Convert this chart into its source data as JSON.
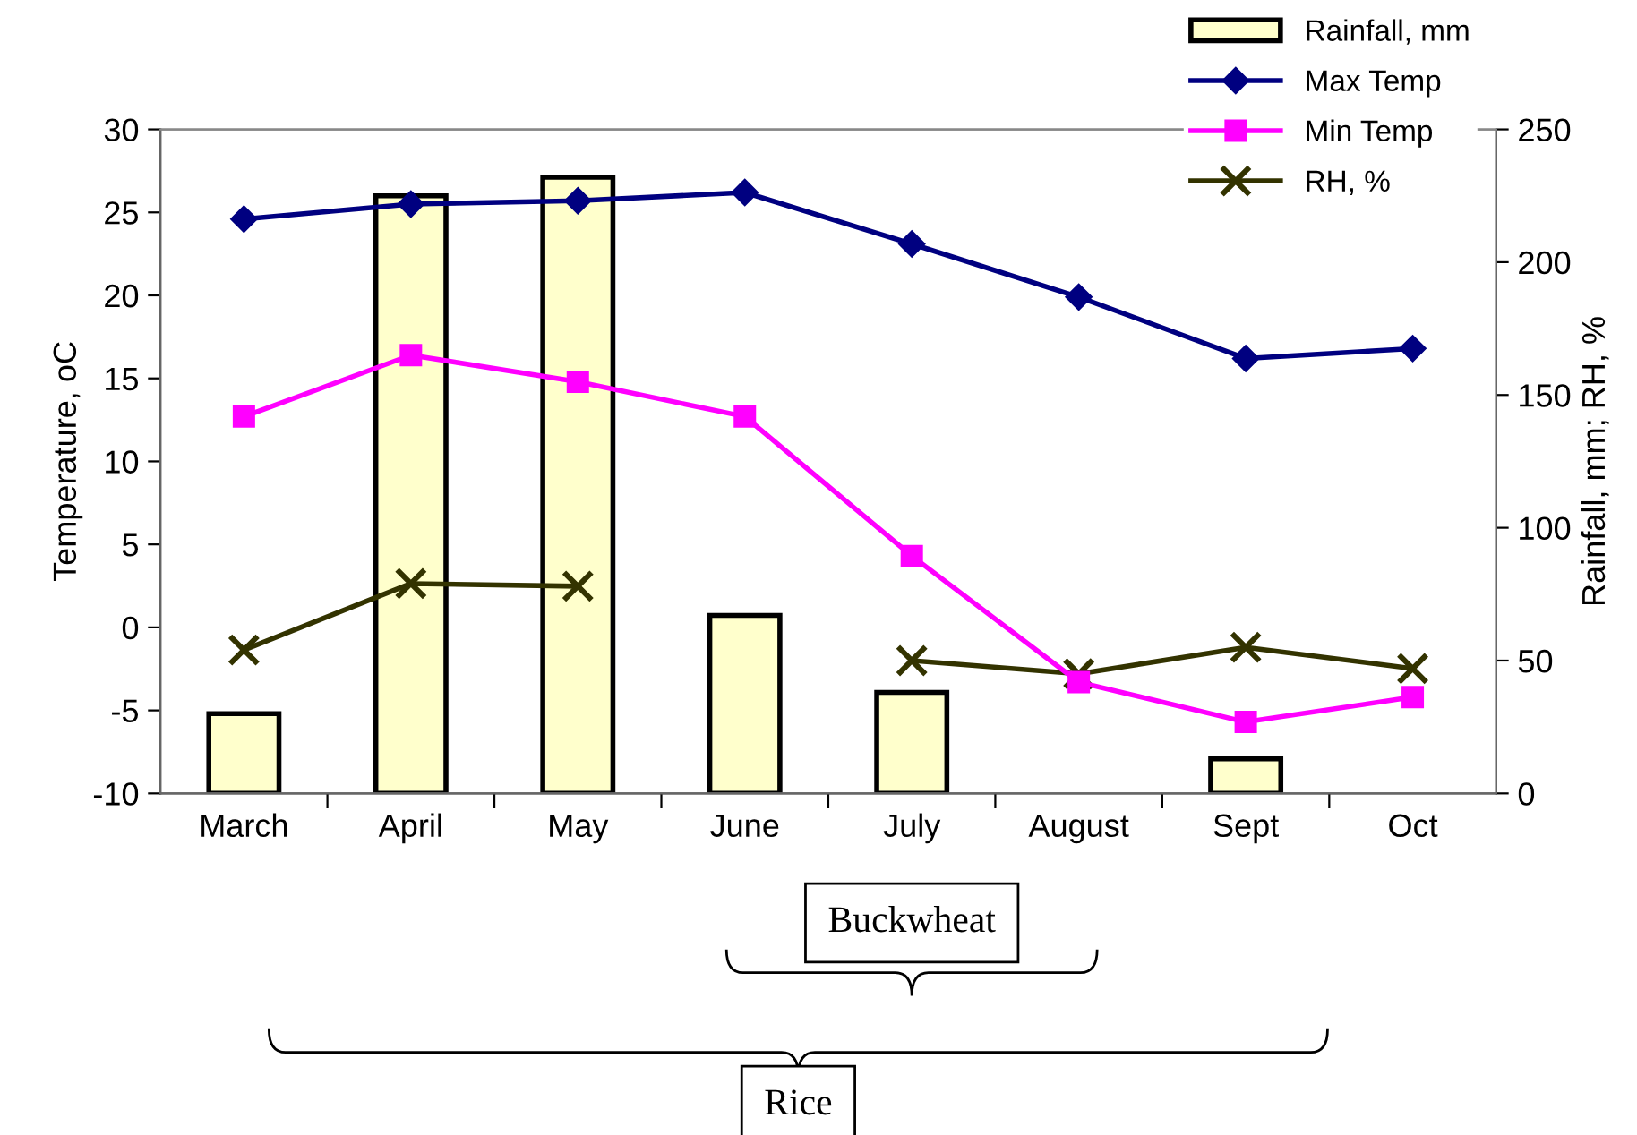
{
  "chart_data": {
    "type": "line",
    "categories": [
      "March",
      "April",
      "May",
      "June",
      "July",
      "August",
      "Sept",
      "Oct"
    ],
    "ylabel": "Temperature, oC",
    "y2label": "Rainfall, mm; RH, %",
    "ylim": [
      -10,
      30
    ],
    "yticks": [
      -10,
      -5,
      0,
      5,
      10,
      15,
      20,
      25,
      30
    ],
    "y2lim": [
      0,
      250
    ],
    "y2ticks": [
      0,
      50,
      100,
      150,
      200,
      250
    ],
    "series": [
      {
        "name": "Rainfall, mm",
        "type": "bar",
        "axis": "y2",
        "color": "#ffffcc",
        "values": [
          30,
          225,
          232,
          67,
          38,
          null,
          13,
          null
        ]
      },
      {
        "name": "Max Temp",
        "axis": "y",
        "color": "#000080",
        "marker": "diamond",
        "values": [
          24.6,
          25.5,
          25.7,
          26.2,
          23.1,
          19.9,
          16.2,
          16.8
        ]
      },
      {
        "name": "Min Temp",
        "axis": "y",
        "color": "#ff00ff",
        "marker": "square",
        "values": [
          12.7,
          16.4,
          14.8,
          12.7,
          4.3,
          -3.3,
          -5.7,
          -4.2
        ]
      },
      {
        "name": "RH, %",
        "axis": "y2",
        "color": "#333300",
        "marker": "cross",
        "values": [
          54,
          79,
          78,
          null,
          50,
          45,
          55,
          47
        ]
      }
    ],
    "line_style": "solid",
    "grid": false,
    "legend": "top right",
    "annotations": [
      "Buckwheat",
      "Rice"
    ]
  }
}
